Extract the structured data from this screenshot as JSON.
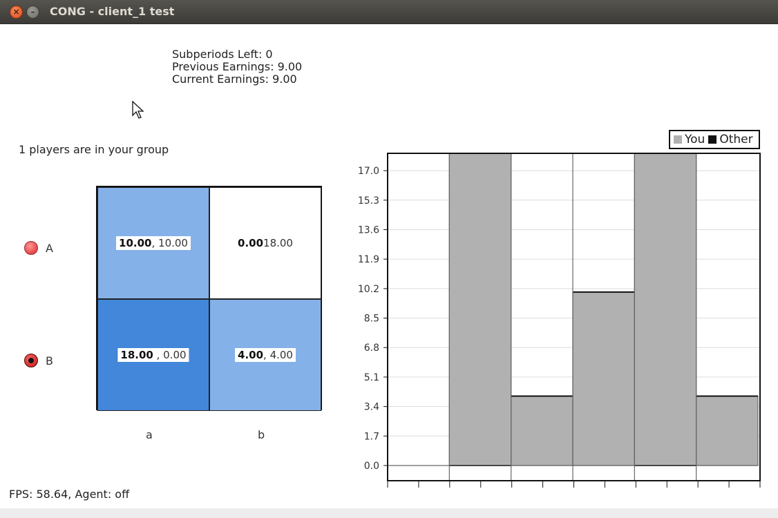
{
  "window": {
    "title": "CONG - client_1 test",
    "close_glyph": "×",
    "minimize_glyph": "–"
  },
  "info": {
    "subperiods": "Subperiods Left: 0",
    "previous": "Previous Earnings: 9.00",
    "current": "Current Earnings: 9.00"
  },
  "group_text": "1 players are in your group",
  "rows": [
    {
      "label": "A",
      "selected": false
    },
    {
      "label": "B",
      "selected": true
    }
  ],
  "columns": [
    "a",
    "b"
  ],
  "matrix": {
    "aa": {
      "mine": "10.00",
      "other": "10.00"
    },
    "ab": {
      "mine": "0.00",
      "other": "18.00"
    },
    "ba": {
      "mine": "18.00",
      "other": "0.00"
    },
    "bb": {
      "mine": "4.00",
      "other": "4.00"
    }
  },
  "colors": {
    "light_blue": "#84b1e8",
    "dark_blue": "#4287d9",
    "bar_gray": "#b1b1b1",
    "bar_edge": "#666666"
  },
  "legend": {
    "you": "You",
    "other": "Other"
  },
  "chart_data": {
    "type": "bar",
    "yticks": [
      "0.0",
      "1.7",
      "3.4",
      "5.1",
      "6.8",
      "8.5",
      "10.2",
      "11.9",
      "13.6",
      "15.3",
      "17.0"
    ],
    "ylim": [
      0,
      18
    ],
    "series": [
      {
        "name": "You",
        "values": [
          0,
          18,
          4,
          10,
          18,
          4
        ]
      },
      {
        "name": "Other",
        "values": [
          18,
          0,
          4,
          10,
          0,
          4
        ]
      }
    ],
    "grid": true,
    "legend_position": "top-right"
  },
  "fps_text": "FPS: 58.64, Agent: off"
}
